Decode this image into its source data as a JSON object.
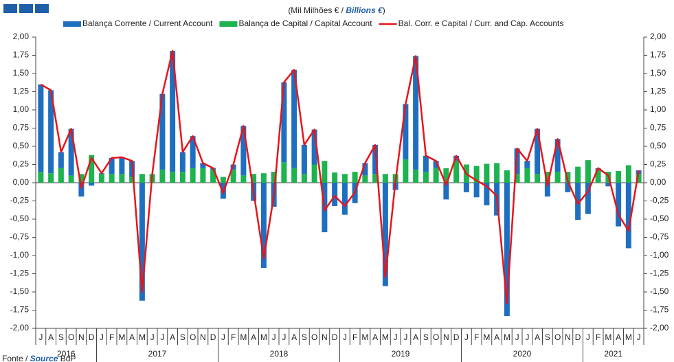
{
  "chart_data": {
    "type": "bar",
    "title_parts": [
      "(Mil Milhões € / ",
      "Billions €",
      ")"
    ],
    "source_parts": [
      "Fonte / ",
      "Source",
      " BdP"
    ],
    "categories": [
      "J",
      "A",
      "S",
      "O",
      "N",
      "D",
      "J",
      "F",
      "M",
      "A",
      "M",
      "J",
      "J",
      "A",
      "S",
      "O",
      "N",
      "D",
      "J",
      "F",
      "M",
      "A",
      "M",
      "J",
      "J",
      "A",
      "S",
      "O",
      "N",
      "D",
      "J",
      "F",
      "M",
      "A",
      "M",
      "J",
      "J",
      "A",
      "S",
      "O",
      "N",
      "D",
      "J",
      "F",
      "M",
      "A",
      "M",
      "J",
      "J",
      "A",
      "S",
      "O",
      "N",
      "D",
      "J",
      "F",
      "M",
      "A",
      "M",
      "J"
    ],
    "years": [
      "2016",
      "2017",
      "2018",
      "2019",
      "2020",
      "2021"
    ],
    "stacked": true,
    "series": [
      {
        "name": "Balança Corrente / Current Account",
        "color": "#1f6fc0",
        "type": "bar",
        "values": [
          1.2,
          1.14,
          0.22,
          0.64,
          -0.19,
          -0.04,
          0.01,
          0.22,
          0.23,
          0.22,
          -1.62,
          0.0,
          1.04,
          1.66,
          0.27,
          0.44,
          0.07,
          0.02,
          -0.22,
          0.07,
          0.68,
          -0.25,
          -1.17,
          -0.33,
          1.1,
          1.35,
          0.4,
          0.48,
          -0.68,
          -0.32,
          -0.44,
          -0.28,
          0.17,
          0.4,
          -1.42,
          -0.1,
          0.76,
          1.56,
          0.22,
          0.1,
          -0.23,
          0.07,
          -0.13,
          -0.2,
          -0.31,
          -0.45,
          -1.83,
          0.35,
          0.1,
          0.62,
          -0.19,
          0.45,
          -0.13,
          -0.51,
          -0.43,
          0.02,
          -0.05,
          -0.6,
          -0.9,
          0.05
        ]
      },
      {
        "name": "Balança de Capital / Capital Account",
        "color": "#1db34f",
        "type": "bar",
        "values": [
          0.15,
          0.13,
          0.2,
          0.1,
          0.12,
          0.38,
          0.12,
          0.12,
          0.12,
          0.08,
          0.12,
          0.12,
          0.18,
          0.15,
          0.15,
          0.2,
          0.2,
          0.18,
          0.08,
          0.18,
          0.1,
          0.12,
          0.13,
          0.15,
          0.28,
          0.2,
          0.12,
          0.25,
          0.3,
          0.14,
          0.12,
          0.15,
          0.1,
          0.12,
          0.12,
          0.12,
          0.32,
          0.18,
          0.15,
          0.2,
          0.2,
          0.3,
          0.25,
          0.23,
          0.26,
          0.27,
          0.17,
          0.12,
          0.2,
          0.12,
          0.15,
          0.15,
          0.15,
          0.22,
          0.31,
          0.18,
          0.15,
          0.16,
          0.24,
          0.12
        ]
      },
      {
        "name": "Bal. Corr. e Capital / Curr. and Cap. Accounts",
        "color": "#e8141a",
        "type": "line",
        "values": [
          1.35,
          1.27,
          0.42,
          0.74,
          -0.07,
          0.34,
          0.13,
          0.34,
          0.35,
          0.3,
          -1.5,
          0.12,
          1.22,
          1.81,
          0.42,
          0.64,
          0.27,
          0.2,
          -0.14,
          0.25,
          0.78,
          -0.13,
          -1.04,
          -0.18,
          1.38,
          1.55,
          0.52,
          0.73,
          -0.38,
          -0.18,
          -0.32,
          -0.13,
          0.27,
          0.52,
          -1.3,
          0.02,
          1.08,
          1.74,
          0.37,
          0.3,
          -0.03,
          0.37,
          0.12,
          0.03,
          -0.05,
          -0.18,
          -1.66,
          0.47,
          0.3,
          0.74,
          -0.04,
          0.6,
          0.02,
          -0.29,
          -0.12,
          0.2,
          0.1,
          -0.44,
          -0.66,
          0.17
        ]
      }
    ],
    "ylim": [
      -2,
      2
    ],
    "yticks": [
      {
        "value": -2,
        "label": "-2,00"
      },
      {
        "value": -1.75,
        "label": "-1,75"
      },
      {
        "value": -1.5,
        "label": "-1,50"
      },
      {
        "value": -1.25,
        "label": "-1,25"
      },
      {
        "value": -1,
        "label": "-1,00"
      },
      {
        "value": -0.75,
        "label": "-0,75"
      },
      {
        "value": -0.5,
        "label": "-0,50"
      },
      {
        "value": -0.25,
        "label": "-0,25"
      },
      {
        "value": 0,
        "label": "0,00"
      },
      {
        "value": 0.25,
        "label": "0,25"
      },
      {
        "value": 0.5,
        "label": "0,50"
      },
      {
        "value": 0.75,
        "label": "0,75"
      },
      {
        "value": 1,
        "label": "1,00"
      },
      {
        "value": 1.25,
        "label": "1,25"
      },
      {
        "value": 1.5,
        "label": "1,50"
      },
      {
        "value": 1.75,
        "label": "1,75"
      },
      {
        "value": 2,
        "label": "2,00"
      }
    ],
    "y2lim": [
      -2,
      2
    ],
    "y2ticks": [
      {
        "value": -2,
        "label": "-2,00"
      },
      {
        "value": -1.75,
        "label": "-1,75"
      },
      {
        "value": -1.5,
        "label": "-1,50"
      },
      {
        "value": -1.25,
        "label": "-1,25"
      },
      {
        "value": -1,
        "label": "-1,00"
      },
      {
        "value": -0.75,
        "label": "-0,75"
      },
      {
        "value": -0.5,
        "label": "-0,50"
      },
      {
        "value": -0.25,
        "label": "-0,25"
      },
      {
        "value": 0,
        "label": "0,00"
      },
      {
        "value": 0.25,
        "label": "0,25"
      },
      {
        "value": 0.5,
        "label": "0,50"
      },
      {
        "value": 0.75,
        "label": "0,75"
      },
      {
        "value": 1,
        "label": "1,00"
      },
      {
        "value": 1.25,
        "label": "1,25"
      },
      {
        "value": 1.5,
        "label": "1,50"
      },
      {
        "value": 1.75,
        "label": "1,75"
      },
      {
        "value": 2,
        "label": "2,00"
      }
    ],
    "grid": false
  }
}
